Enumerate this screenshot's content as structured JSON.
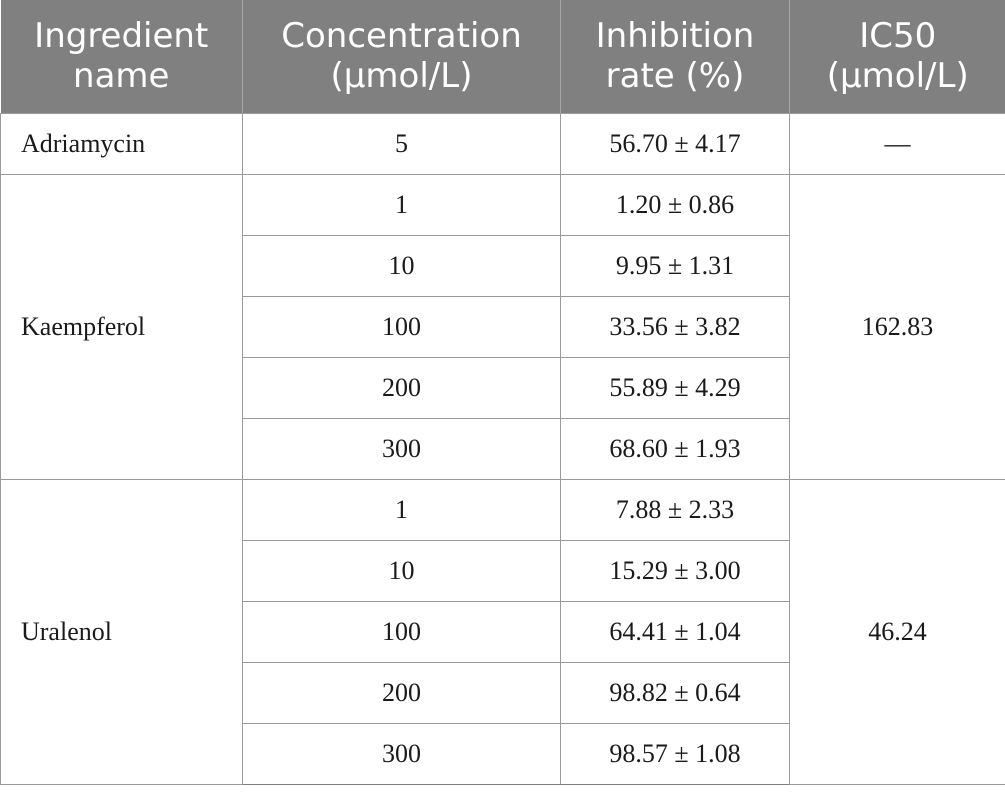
{
  "headers": {
    "ingredient": [
      "Ingredient",
      "name"
    ],
    "concentration": [
      "Concentration",
      "(μmol/L)"
    ],
    "inhibition": [
      "Inhibition",
      "rate (%)"
    ],
    "ic50": [
      "IC50",
      "(μmol/L)"
    ]
  },
  "rows": {
    "adriamycin": {
      "name": "Adriamycin",
      "ic50": "—",
      "entries": [
        {
          "concentration": "5",
          "inhibition": "56.70 ± 4.17"
        }
      ]
    },
    "kaempferol": {
      "name": "Kaempferol",
      "ic50": "162.83",
      "entries": [
        {
          "concentration": "1",
          "inhibition": "1.20 ± 0.86"
        },
        {
          "concentration": "10",
          "inhibition": "9.95 ± 1.31"
        },
        {
          "concentration": "100",
          "inhibition": "33.56 ± 3.82"
        },
        {
          "concentration": "200",
          "inhibition": "55.89 ± 4.29"
        },
        {
          "concentration": "300",
          "inhibition": "68.60 ± 1.93"
        }
      ]
    },
    "uralenol": {
      "name": "Uralenol",
      "ic50": "46.24",
      "entries": [
        {
          "concentration": "1",
          "inhibition": "7.88 ± 2.33"
        },
        {
          "concentration": "10",
          "inhibition": "15.29 ± 3.00"
        },
        {
          "concentration": "100",
          "inhibition": "64.41 ± 1.04"
        },
        {
          "concentration": "200",
          "inhibition": "98.82 ± 0.64"
        },
        {
          "concentration": "300",
          "inhibition": "98.57 ± 1.08"
        }
      ]
    }
  }
}
